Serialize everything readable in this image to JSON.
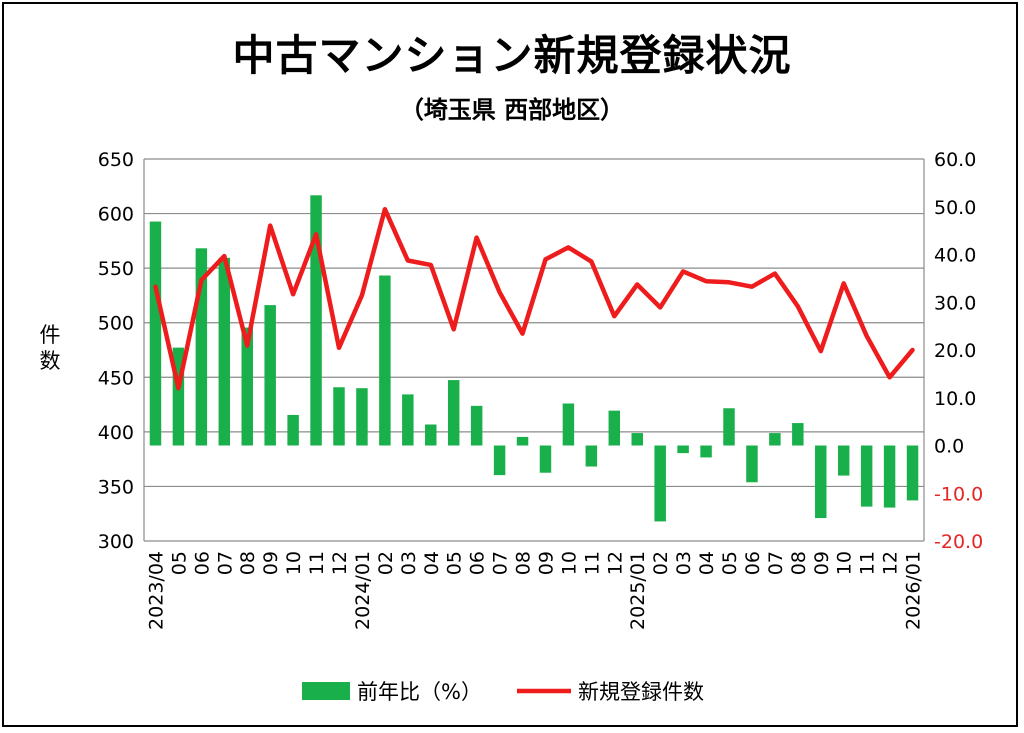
{
  "title": "中古マンション新規登録状況",
  "subtitle": "（埼玉県 西部地区）",
  "colors": {
    "bar": "#19b04b",
    "line": "#ee1c1c",
    "negative_tick": "#e32626",
    "grid": "#8c8c8c"
  },
  "chart_data": {
    "type": "bar+line",
    "categories": [
      "2023/04",
      "05",
      "06",
      "07",
      "08",
      "09",
      "10",
      "11",
      "12",
      "2024/01",
      "02",
      "03",
      "04",
      "05",
      "06",
      "07",
      "08",
      "09",
      "10",
      "11",
      "12",
      "2025/01",
      "02",
      "03",
      "04",
      "05",
      "06",
      "07",
      "08",
      "09",
      "10",
      "11",
      "12",
      "2026/01"
    ],
    "left_axis": {
      "label": "件数",
      "min": 300,
      "max": 650,
      "ticks": [
        "650",
        "600",
        "550",
        "500",
        "450",
        "400",
        "350",
        "300"
      ]
    },
    "right_axis": {
      "min": -20,
      "max": 60,
      "ticks": [
        "60.0",
        "50.0",
        "40.0",
        "30.0",
        "20.0",
        "10.0",
        "0.0",
        "-10.0",
        "-20.0"
      ]
    },
    "series": [
      {
        "name": "前年比（%）",
        "type": "bar",
        "axis": "right",
        "values": [
          46.9,
          20.5,
          41.3,
          39.3,
          24.7,
          29.4,
          6.4,
          52.4,
          12.2,
          12.0,
          35.6,
          10.7,
          4.4,
          13.7,
          8.3,
          -6.2,
          1.8,
          -5.7,
          8.8,
          -4.4,
          7.3,
          2.6,
          -15.9,
          -1.6,
          -2.5,
          7.8,
          -7.7,
          2.6,
          4.7,
          -15.2,
          -6.3,
          -12.8,
          -13.0,
          -11.5
        ]
      },
      {
        "name": "新規登録件数",
        "type": "line",
        "axis": "left",
        "values": [
          533,
          440,
          539,
          561,
          479,
          589,
          526,
          581,
          477,
          525,
          604,
          557,
          553,
          494,
          578,
          528,
          490,
          558,
          569,
          556,
          506,
          535,
          514,
          547,
          538,
          537,
          533,
          545,
          515,
          474,
          536,
          488,
          450,
          475
        ]
      }
    ],
    "legend": [
      "前年比（%）",
      "新規登録件数"
    ],
    "legend_placement": "bottom",
    "grid": true
  }
}
